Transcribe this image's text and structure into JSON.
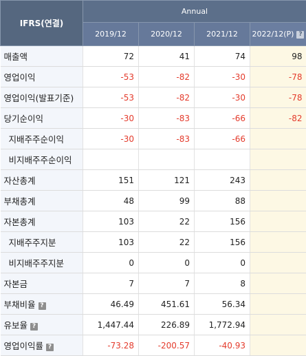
{
  "header": {
    "corner": "IFRS(연결)",
    "group": "Annual",
    "periods": [
      "2019/12",
      "2020/12",
      "2021/12",
      "2022/12(P)"
    ],
    "help_glyph": "?"
  },
  "rows": [
    {
      "label": "매출액",
      "sub": false,
      "help": false,
      "values": [
        "72",
        "41",
        "74",
        "98"
      ]
    },
    {
      "label": "영업이익",
      "sub": false,
      "help": false,
      "values": [
        "-53",
        "-82",
        "-30",
        "-78"
      ]
    },
    {
      "label": "영업이익(발표기준)",
      "sub": false,
      "help": false,
      "values": [
        "-53",
        "-82",
        "-30",
        "-78"
      ]
    },
    {
      "label": "당기순이익",
      "sub": false,
      "help": false,
      "values": [
        "-30",
        "-83",
        "-66",
        "-82"
      ]
    },
    {
      "label": "지배주주순이익",
      "sub": true,
      "help": false,
      "values": [
        "-30",
        "-83",
        "-66",
        ""
      ]
    },
    {
      "label": "비지배주주순이익",
      "sub": true,
      "help": false,
      "values": [
        "",
        "",
        "",
        ""
      ]
    },
    {
      "label": "자산총계",
      "sub": false,
      "help": false,
      "values": [
        "151",
        "121",
        "243",
        ""
      ]
    },
    {
      "label": "부채총계",
      "sub": false,
      "help": false,
      "values": [
        "48",
        "99",
        "88",
        ""
      ]
    },
    {
      "label": "자본총계",
      "sub": false,
      "help": false,
      "values": [
        "103",
        "22",
        "156",
        ""
      ]
    },
    {
      "label": "지배주주지분",
      "sub": true,
      "help": false,
      "values": [
        "103",
        "22",
        "156",
        ""
      ]
    },
    {
      "label": "비지배주주지분",
      "sub": true,
      "help": false,
      "values": [
        "0",
        "0",
        "0",
        ""
      ]
    },
    {
      "label": "자본금",
      "sub": false,
      "help": false,
      "values": [
        "7",
        "7",
        "8",
        ""
      ]
    },
    {
      "label": "부채비율",
      "sub": false,
      "help": true,
      "values": [
        "46.49",
        "451.61",
        "56.34",
        ""
      ]
    },
    {
      "label": "유보율",
      "sub": false,
      "help": true,
      "values": [
        "1,447.44",
        "226.89",
        "1,772.94",
        ""
      ]
    },
    {
      "label": "영업이익률",
      "sub": false,
      "help": true,
      "values": [
        "-73.28",
        "-200.57",
        "-40.93",
        ""
      ]
    }
  ],
  "colors": {
    "negative": "#e43b2c",
    "header": "#5c6f8a",
    "projection_bg": "#fdf8e4"
  }
}
